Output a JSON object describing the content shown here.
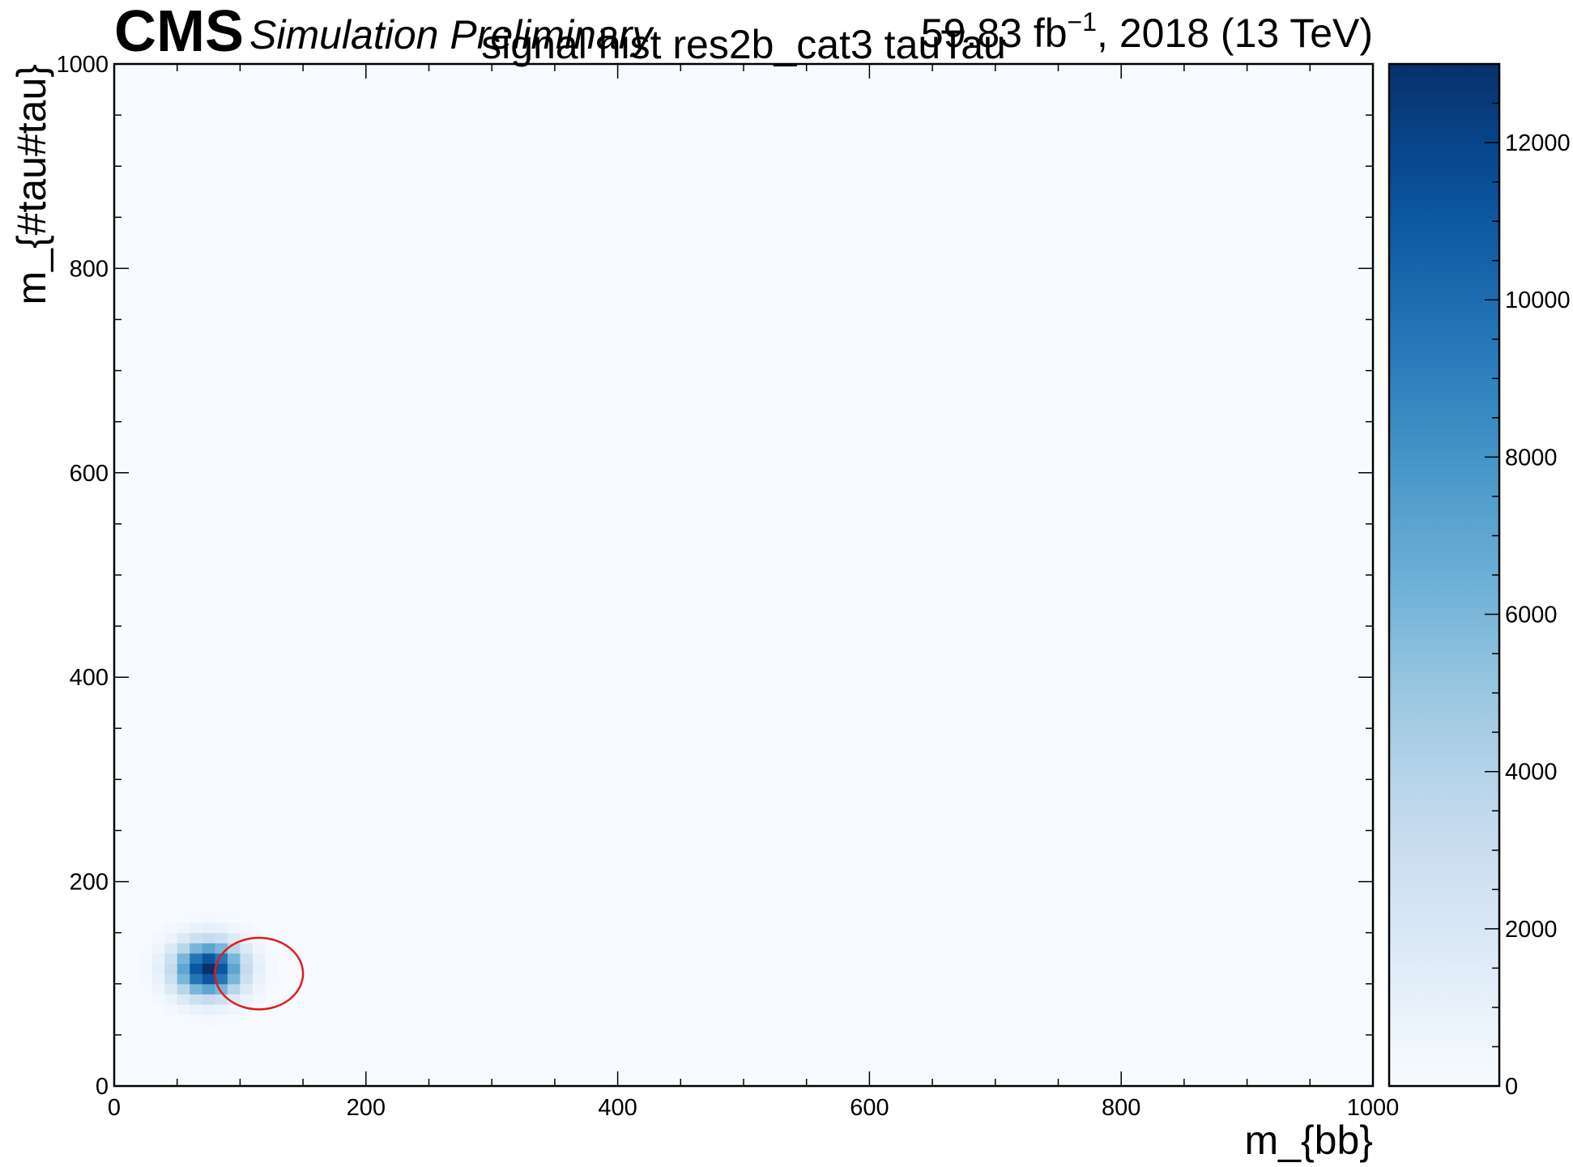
{
  "header": {
    "experiment": "CMS",
    "status": "Simulation Preliminary",
    "lumi_value": "59.83 fb",
    "lumi_exponent": "−1",
    "lumi_suffix": ", 2018 (13 TeV)"
  },
  "chart_data": {
    "type": "heatmap",
    "title": "signal hist res2b_cat3 tauTau",
    "xlabel": "m_{bb}",
    "ylabel": "m_{#tau#tau}",
    "xlim": [
      0,
      1000
    ],
    "ylim": [
      0,
      1000
    ],
    "zlim": [
      0,
      13000
    ],
    "xticks": [
      "0",
      "200",
      "400",
      "600",
      "800",
      "1000"
    ],
    "yticks": [
      "0",
      "200",
      "400",
      "600",
      "800",
      "1000"
    ],
    "zticks": [
      "0",
      "2000",
      "4000",
      "6000",
      "8000",
      "10000",
      "12000"
    ],
    "colormap": [
      "#f7fbff",
      "#deebf7",
      "#c6dbef",
      "#9ecae1",
      "#6baed6",
      "#4292c6",
      "#2171b5",
      "#08519c",
      "#08306b"
    ],
    "bin_width": 10,
    "peak": {
      "x": 75,
      "y": 115,
      "value": 13000,
      "sigma_x": 18,
      "sigma_y": 18
    },
    "circle": {
      "x": 115,
      "y": 110,
      "radius": 35,
      "color": "#e41a1c"
    }
  }
}
